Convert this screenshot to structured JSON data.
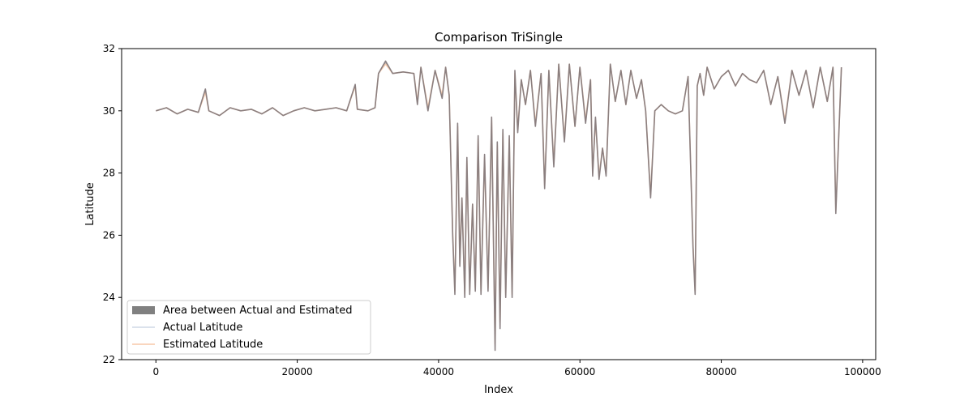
{
  "chart_data": {
    "type": "line",
    "title": "Comparison TriSingle",
    "xlabel": "Index",
    "ylabel": "Latitude",
    "xlim": [
      -4850,
      101850
    ],
    "ylim": [
      22,
      32
    ],
    "xticks": [
      0,
      20000,
      40000,
      60000,
      80000,
      100000
    ],
    "yticks": [
      22,
      24,
      26,
      28,
      30,
      32
    ],
    "grid": false,
    "legend_position": "lower-left",
    "colors": {
      "fill": "#808080",
      "actual": "#cfd8e6",
      "estimated": "#f7c9a9",
      "overlap": "#857a7c"
    },
    "legend": [
      {
        "label": "Area between Actual and Estimated",
        "kind": "patch",
        "color": "#808080"
      },
      {
        "label": "Actual Latitude",
        "kind": "line",
        "color": "#cfd8e6"
      },
      {
        "label": "Estimated Latitude",
        "kind": "line",
        "color": "#f7c9a9"
      }
    ],
    "series": [
      {
        "name": "Actual Latitude",
        "x": [
          0,
          1500,
          3000,
          4500,
          6000,
          7000,
          7500,
          9000,
          10500,
          12000,
          13500,
          15000,
          16500,
          18000,
          19500,
          21000,
          22500,
          24000,
          25500,
          27000,
          28200,
          28500,
          30000,
          31000,
          31500,
          32500,
          33500,
          35000,
          36500,
          37000,
          37500,
          38500,
          39500,
          40500,
          41000,
          41500,
          42000,
          42300,
          42700,
          43000,
          43300,
          43700,
          44000,
          44400,
          44800,
          45200,
          45600,
          46000,
          46500,
          47000,
          47500,
          48000,
          48300,
          48700,
          49100,
          49500,
          50000,
          50400,
          50800,
          51200,
          51700,
          52300,
          53000,
          53700,
          54500,
          55000,
          55600,
          56300,
          57000,
          57800,
          58500,
          59300,
          60000,
          60800,
          61500,
          61800,
          62200,
          62700,
          63200,
          63700,
          64300,
          65000,
          65800,
          66500,
          67200,
          68000,
          68700,
          69300,
          70000,
          70600,
          71500,
          72500,
          73500,
          74500,
          75300,
          76000,
          76300,
          76600,
          77000,
          77500,
          78000,
          79000,
          80000,
          81000,
          82000,
          83000,
          84000,
          85000,
          86000,
          87000,
          88000,
          89000,
          90000,
          91000,
          92000,
          93000,
          94000,
          95000,
          95800,
          96200,
          97000
        ],
        "y": [
          30.0,
          30.1,
          29.9,
          30.05,
          29.95,
          30.7,
          30.0,
          29.85,
          30.1,
          30.0,
          30.05,
          29.9,
          30.1,
          29.85,
          30.0,
          30.1,
          30.0,
          30.05,
          30.1,
          30.0,
          30.85,
          30.05,
          30.0,
          30.1,
          31.2,
          31.6,
          31.2,
          31.25,
          31.2,
          30.2,
          31.4,
          30.0,
          31.3,
          30.4,
          31.4,
          30.5,
          26.0,
          24.1,
          29.6,
          25.0,
          27.2,
          24.0,
          28.5,
          24.1,
          27.0,
          24.2,
          29.2,
          24.1,
          28.6,
          24.2,
          29.8,
          22.3,
          29.0,
          23.0,
          29.4,
          24.0,
          29.2,
          24.0,
          31.3,
          29.3,
          31.0,
          30.2,
          31.3,
          29.5,
          31.2,
          27.5,
          31.3,
          28.2,
          31.5,
          29.0,
          31.5,
          29.5,
          31.4,
          29.6,
          31.0,
          27.9,
          29.8,
          27.8,
          28.8,
          27.9,
          31.5,
          30.3,
          31.3,
          30.2,
          31.3,
          30.4,
          31.0,
          30.0,
          27.2,
          30.0,
          30.2,
          30.0,
          29.9,
          30.0,
          31.1,
          25.6,
          24.1,
          30.8,
          31.2,
          30.5,
          31.4,
          30.7,
          31.1,
          31.3,
          30.8,
          31.2,
          31.0,
          30.9,
          31.3,
          30.2,
          31.1,
          29.6,
          31.3,
          30.5,
          31.3,
          30.1,
          31.4,
          30.3,
          31.4,
          26.7,
          31.4
        ]
      },
      {
        "name": "Estimated Latitude",
        "x": [
          0,
          1500,
          3000,
          4500,
          6000,
          7000,
          7500,
          9000,
          10500,
          12000,
          13500,
          15000,
          16500,
          18000,
          19500,
          21000,
          22500,
          24000,
          25500,
          27000,
          28200,
          28500,
          30000,
          31000,
          31500,
          32500,
          33500,
          35000,
          36500,
          37000,
          37500,
          38500,
          39500,
          40500,
          41000,
          41500,
          42000,
          42300,
          42700,
          43000,
          43300,
          43700,
          44000,
          44400,
          44800,
          45200,
          45600,
          46000,
          46500,
          47000,
          47500,
          48000,
          48300,
          48700,
          49100,
          49500,
          50000,
          50400,
          50800,
          51200,
          51700,
          52300,
          53000,
          53700,
          54500,
          55000,
          55600,
          56300,
          57000,
          57800,
          58500,
          59300,
          60000,
          60800,
          61500,
          61800,
          62200,
          62700,
          63200,
          63700,
          64300,
          65000,
          65800,
          66500,
          67200,
          68000,
          68700,
          69300,
          70000,
          70600,
          71500,
          72500,
          73500,
          74500,
          75300,
          76000,
          76300,
          76600,
          77000,
          77500,
          78000,
          79000,
          80000,
          81000,
          82000,
          83000,
          84000,
          85000,
          86000,
          87000,
          88000,
          89000,
          90000,
          91000,
          92000,
          93000,
          94000,
          95000,
          95800,
          96200,
          97000
        ],
        "y": [
          30.0,
          30.1,
          29.9,
          30.05,
          29.95,
          30.6,
          30.0,
          29.85,
          30.1,
          30.0,
          30.05,
          29.9,
          30.1,
          29.85,
          30.0,
          30.1,
          30.0,
          30.05,
          30.1,
          30.0,
          30.8,
          30.05,
          30.0,
          30.1,
          31.2,
          31.5,
          31.2,
          31.25,
          31.2,
          30.3,
          31.4,
          30.1,
          31.3,
          30.5,
          31.4,
          30.5,
          26.1,
          24.2,
          29.5,
          25.1,
          27.2,
          24.1,
          28.4,
          24.2,
          27.0,
          24.3,
          29.1,
          24.2,
          28.5,
          24.3,
          29.7,
          22.5,
          28.9,
          23.2,
          29.3,
          24.1,
          29.1,
          24.1,
          31.2,
          29.4,
          31.0,
          30.2,
          31.3,
          29.6,
          31.2,
          27.6,
          31.3,
          28.3,
          31.5,
          29.1,
          31.5,
          29.5,
          31.4,
          29.7,
          31.0,
          28.0,
          29.7,
          27.9,
          28.8,
          28.0,
          31.5,
          30.3,
          31.3,
          30.2,
          31.3,
          30.4,
          31.0,
          30.0,
          27.3,
          30.0,
          30.2,
          30.0,
          29.9,
          30.0,
          31.1,
          25.7,
          24.2,
          30.8,
          31.2,
          30.5,
          31.4,
          30.7,
          31.1,
          31.3,
          30.8,
          31.2,
          31.0,
          30.9,
          31.3,
          30.2,
          31.1,
          29.7,
          31.3,
          30.5,
          31.3,
          30.1,
          31.4,
          30.3,
          31.4,
          26.8,
          31.4
        ]
      }
    ]
  }
}
